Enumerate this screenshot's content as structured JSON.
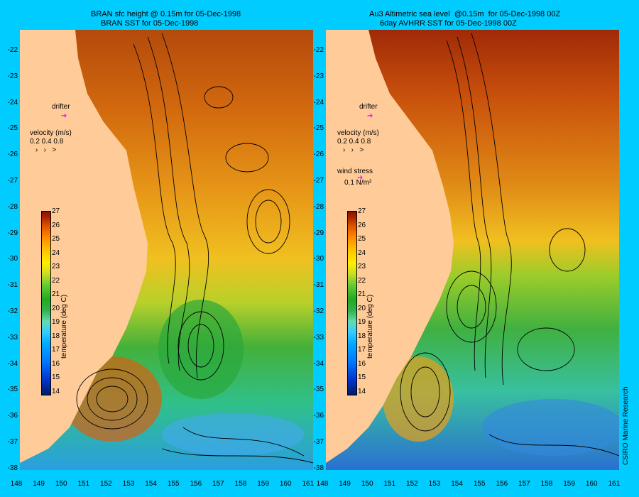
{
  "left_panel": {
    "title_line1": "BRAN sfc height @ 0.15m for 05-Dec-1998",
    "title_line2": "BRAN SST for 05-Dec-1998",
    "drifter_label": "drifter",
    "velocity_label": "velocity (m/s)",
    "velocity_scale": "0.2 0.4 0.8"
  },
  "right_panel": {
    "title_line1": "Au3 Altimetric sea level  @0.15m  for 05-Dec-1998 00Z",
    "title_line2": "6day AVHRR SST for 05-Dec-1998 00Z",
    "drifter_label": "drifter",
    "velocity_label": "velocity (m/s)",
    "velocity_scale": "0.2 0.4 0.8",
    "wind_label": "wind stress",
    "wind_scale": "0.1 N/m²"
  },
  "colorbar": {
    "title": "temperature (deg C)",
    "ticks": [
      "27",
      "26",
      "25",
      "24",
      "23",
      "22",
      "21",
      "20",
      "19",
      "18",
      "17",
      "16",
      "15",
      "14"
    ]
  },
  "axes": {
    "lat_labels": [
      "-22",
      "-23",
      "-24",
      "-25",
      "-26",
      "-27",
      "-28",
      "-29",
      "-30",
      "-31",
      "-32",
      "-33",
      "-34",
      "-35",
      "-36",
      "-37",
      "-38"
    ],
    "lon_labels": [
      "148",
      "149",
      "150",
      "151",
      "152",
      "153",
      "154",
      "155",
      "156",
      "157",
      "158",
      "159",
      "160",
      "161"
    ]
  },
  "credit": "CSIRO Marine Research",
  "colors": {
    "background": "#00ccff",
    "land": "#ffcc99",
    "drifter": "#ff00ff"
  }
}
